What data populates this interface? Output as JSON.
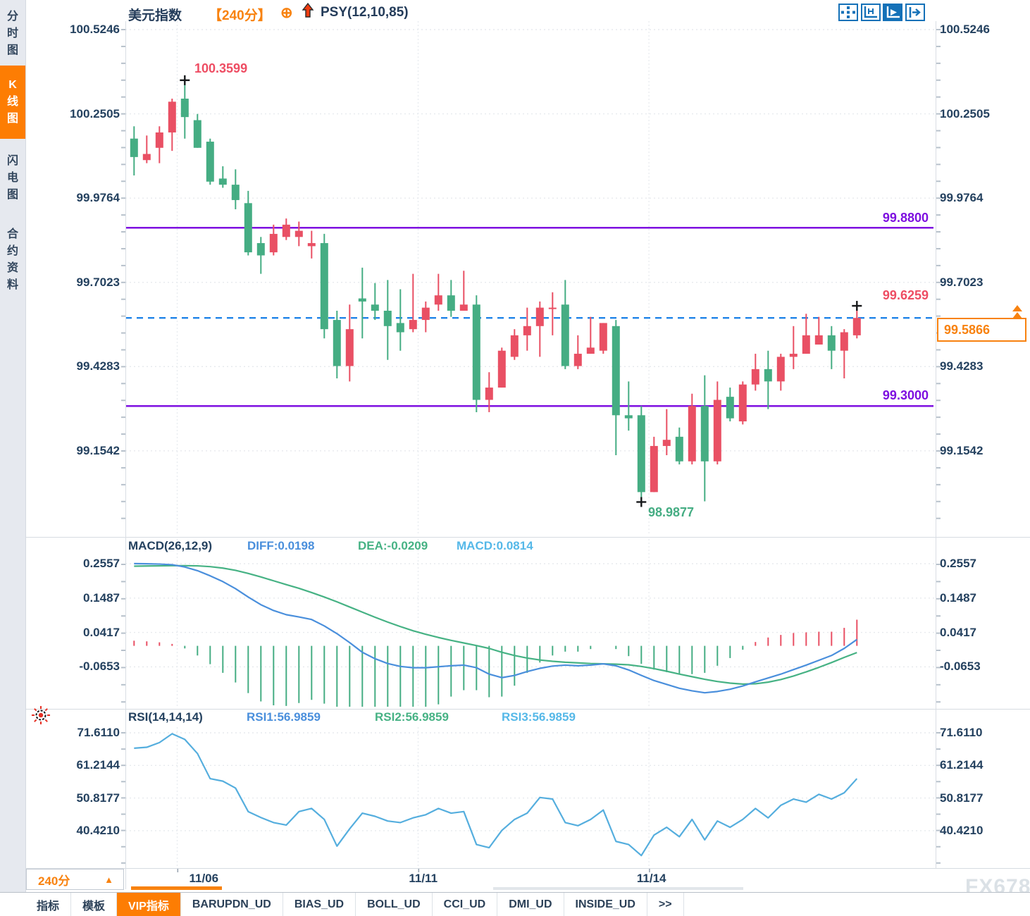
{
  "colors": {
    "up": "#e95064",
    "down": "#45ad83",
    "purple": "#7e10e0",
    "dashed_blue": "#1f83e8",
    "orange": "#f8820f",
    "navy": "#24415f",
    "diff_blue": "#4a8fdc",
    "dea_green": "#46b284",
    "macd_cyan": "#55b8e8",
    "rsi_line": "#55aede",
    "grid": "#e7eaee",
    "icon_blue": "#1471b8",
    "marker_black": "#16181a"
  },
  "sidebar": {
    "tabs": [
      {
        "label": "分时图",
        "selected": false
      },
      {
        "label": "K线图",
        "selected": true
      },
      {
        "label": "闪电图",
        "selected": false
      },
      {
        "label": "合约资料",
        "selected": false
      }
    ]
  },
  "header": {
    "symbol": "美元指数",
    "period": "【240分】",
    "plus_icon": "⊕",
    "arrow_icon": "up-arrow-icon",
    "indicator": "PSY(12,10,85)"
  },
  "toolbar": {
    "icons": [
      {
        "name": "pan-crosshair-icon",
        "selected": false
      },
      {
        "name": "axis-range-icon",
        "selected": false
      },
      {
        "name": "axis-autoscale-icon",
        "selected": true
      },
      {
        "name": "collapse-panel-icon",
        "selected": false
      }
    ]
  },
  "chart_data": {
    "type": "candlestick",
    "symbol": "美元指数",
    "interval": "240分",
    "main": {
      "y_ticks": [
        {
          "label": "100.5246",
          "value": 100.5246
        },
        {
          "label": "100.2505",
          "value": 100.2505
        },
        {
          "label": "99.9764",
          "value": 99.9764
        },
        {
          "label": "99.7023",
          "value": 99.7023
        },
        {
          "label": "99.4283",
          "value": 99.4283
        },
        {
          "label": "99.1542",
          "value": 99.1542
        }
      ],
      "x_ticks": [
        {
          "label": "11/06",
          "index": 5.5,
          "grid_index": 3.4
        },
        {
          "label": "11/11",
          "index": 22.8,
          "grid_index": 22.4
        },
        {
          "label": "11/14",
          "index": 40.8,
          "grid_index": 40.6
        }
      ],
      "candles": [
        {
          "o": 100.17,
          "h": 100.21,
          "l": 100.05,
          "c": 100.11
        },
        {
          "o": 100.1,
          "h": 100.18,
          "l": 100.09,
          "c": 100.12
        },
        {
          "o": 100.14,
          "h": 100.21,
          "l": 100.09,
          "c": 100.19
        },
        {
          "o": 100.19,
          "h": 100.3,
          "l": 100.13,
          "c": 100.29
        },
        {
          "o": 100.3,
          "h": 100.3599,
          "l": 100.17,
          "c": 100.24
        },
        {
          "o": 100.23,
          "h": 100.25,
          "l": 100.14,
          "c": 100.14
        },
        {
          "o": 100.16,
          "h": 100.17,
          "l": 100.02,
          "c": 100.03
        },
        {
          "o": 100.04,
          "h": 100.08,
          "l": 100.01,
          "c": 100.02
        },
        {
          "o": 100.02,
          "h": 100.07,
          "l": 99.94,
          "c": 99.97
        },
        {
          "o": 99.96,
          "h": 100.0,
          "l": 99.79,
          "c": 99.8
        },
        {
          "o": 99.83,
          "h": 99.85,
          "l": 99.73,
          "c": 99.79
        },
        {
          "o": 99.8,
          "h": 99.89,
          "l": 99.79,
          "c": 99.86
        },
        {
          "o": 99.85,
          "h": 99.91,
          "l": 99.84,
          "c": 99.89
        },
        {
          "o": 99.85,
          "h": 99.9,
          "l": 99.82,
          "c": 99.87
        },
        {
          "o": 99.82,
          "h": 99.87,
          "l": 99.78,
          "c": 99.83
        },
        {
          "o": 99.83,
          "h": 99.86,
          "l": 99.52,
          "c": 99.55
        },
        {
          "o": 99.58,
          "h": 99.61,
          "l": 99.39,
          "c": 99.43
        },
        {
          "o": 99.43,
          "h": 99.63,
          "l": 99.38,
          "c": 99.55
        },
        {
          "o": 99.65,
          "h": 99.75,
          "l": 99.52,
          "c": 99.64
        },
        {
          "o": 99.63,
          "h": 99.7,
          "l": 99.58,
          "c": 99.61
        },
        {
          "o": 99.61,
          "h": 99.71,
          "l": 99.45,
          "c": 99.56
        },
        {
          "o": 99.57,
          "h": 99.68,
          "l": 99.48,
          "c": 99.54
        },
        {
          "o": 99.55,
          "h": 99.73,
          "l": 99.54,
          "c": 99.58
        },
        {
          "o": 99.58,
          "h": 99.64,
          "l": 99.54,
          "c": 99.62
        },
        {
          "o": 99.63,
          "h": 99.73,
          "l": 99.61,
          "c": 99.66
        },
        {
          "o": 99.66,
          "h": 99.71,
          "l": 99.59,
          "c": 99.61
        },
        {
          "o": 99.61,
          "h": 99.74,
          "l": 99.61,
          "c": 99.63
        },
        {
          "o": 99.63,
          "h": 99.66,
          "l": 99.28,
          "c": 99.32
        },
        {
          "o": 99.32,
          "h": 99.41,
          "l": 99.28,
          "c": 99.36
        },
        {
          "o": 99.36,
          "h": 99.49,
          "l": 99.36,
          "c": 99.48
        },
        {
          "o": 99.46,
          "h": 99.55,
          "l": 99.45,
          "c": 99.53
        },
        {
          "o": 99.53,
          "h": 99.62,
          "l": 99.48,
          "c": 99.56
        },
        {
          "o": 99.56,
          "h": 99.64,
          "l": 99.46,
          "c": 99.62
        },
        {
          "o": 99.62,
          "h": 99.67,
          "l": 99.53,
          "c": 99.62
        },
        {
          "o": 99.63,
          "h": 99.71,
          "l": 99.42,
          "c": 99.43
        },
        {
          "o": 99.43,
          "h": 99.53,
          "l": 99.42,
          "c": 99.47
        },
        {
          "o": 99.47,
          "h": 99.59,
          "l": 99.47,
          "c": 99.49
        },
        {
          "o": 99.48,
          "h": 99.57,
          "l": 99.47,
          "c": 99.57
        },
        {
          "o": 99.56,
          "h": 99.58,
          "l": 99.14,
          "c": 99.27
        },
        {
          "o": 99.27,
          "h": 99.38,
          "l": 99.22,
          "c": 99.26
        },
        {
          "o": 99.27,
          "h": 99.3,
          "l": 98.9877,
          "c": 99.02
        },
        {
          "o": 99.02,
          "h": 99.2,
          "l": 99.02,
          "c": 99.17
        },
        {
          "o": 99.17,
          "h": 99.29,
          "l": 99.14,
          "c": 99.19
        },
        {
          "o": 99.2,
          "h": 99.23,
          "l": 99.11,
          "c": 99.12
        },
        {
          "o": 99.12,
          "h": 99.34,
          "l": 99.11,
          "c": 99.3
        },
        {
          "o": 99.3,
          "h": 99.4,
          "l": 98.99,
          "c": 99.12
        },
        {
          "o": 99.12,
          "h": 99.38,
          "l": 99.11,
          "c": 99.32
        },
        {
          "o": 99.33,
          "h": 99.36,
          "l": 99.25,
          "c": 99.26
        },
        {
          "o": 99.25,
          "h": 99.38,
          "l": 99.24,
          "c": 99.37
        },
        {
          "o": 99.37,
          "h": 99.47,
          "l": 99.35,
          "c": 99.42
        },
        {
          "o": 99.42,
          "h": 99.48,
          "l": 99.29,
          "c": 99.38
        },
        {
          "o": 99.38,
          "h": 99.47,
          "l": 99.35,
          "c": 99.46
        },
        {
          "o": 99.46,
          "h": 99.56,
          "l": 99.42,
          "c": 99.47
        },
        {
          "o": 99.47,
          "h": 99.6,
          "l": 99.47,
          "c": 99.53
        },
        {
          "o": 99.5,
          "h": 99.59,
          "l": 99.5,
          "c": 99.53
        },
        {
          "o": 99.53,
          "h": 99.56,
          "l": 99.42,
          "c": 99.48
        },
        {
          "o": 99.48,
          "h": 99.55,
          "l": 99.39,
          "c": 99.54
        },
        {
          "o": 99.53,
          "h": 99.6259,
          "l": 99.52,
          "c": 99.5866
        }
      ],
      "markers": [
        {
          "index": 4,
          "at": "high",
          "label": "100.3599"
        },
        {
          "index": 40,
          "at": "low",
          "label": "98.9877"
        },
        {
          "index": 57,
          "at": "high",
          "label": "99.6259"
        }
      ],
      "hlines": [
        {
          "value": 99.88,
          "label": "99.8800"
        },
        {
          "value": 99.3,
          "label": "99.3000"
        }
      ],
      "current_price": {
        "value": 99.5866,
        "label": "99.5866"
      }
    },
    "macd": {
      "title": "MACD(26,12,9)",
      "diff_label": "DIFF:0.0198",
      "dea_label": "DEA:-0.0209",
      "macd_label": "MACD:0.0814",
      "y_ticks": [
        {
          "label": "0.2557",
          "value": 0.2557
        },
        {
          "label": "0.1487",
          "value": 0.1487
        },
        {
          "label": "0.0417",
          "value": 0.0417
        },
        {
          "label": "-0.0653",
          "value": -0.0653
        }
      ],
      "diff": [
        0.256,
        0.2555,
        0.2545,
        0.2525,
        0.2455,
        0.234,
        0.218,
        0.2,
        0.178,
        0.152,
        0.128,
        0.11,
        0.097,
        0.09,
        0.082,
        0.062,
        0.038,
        0.01,
        -0.02,
        -0.04,
        -0.055,
        -0.064,
        -0.068,
        -0.068,
        -0.065,
        -0.062,
        -0.06,
        -0.068,
        -0.088,
        -0.099,
        -0.092,
        -0.08,
        -0.07,
        -0.063,
        -0.06,
        -0.062,
        -0.06,
        -0.056,
        -0.062,
        -0.075,
        -0.092,
        -0.108,
        -0.12,
        -0.132,
        -0.14,
        -0.146,
        -0.142,
        -0.135,
        -0.125,
        -0.112,
        -0.1,
        -0.088,
        -0.074,
        -0.06,
        -0.045,
        -0.03,
        -0.008,
        0.0198
      ],
      "dea": [
        0.248,
        0.2485,
        0.249,
        0.2495,
        0.2495,
        0.249,
        0.2465,
        0.242,
        0.235,
        0.2255,
        0.2145,
        0.2025,
        0.1905,
        0.179,
        0.166,
        0.152,
        0.137,
        0.121,
        0.105,
        0.089,
        0.074,
        0.06,
        0.047,
        0.036,
        0.026,
        0.017,
        0.009,
        0.001,
        -0.008,
        -0.02,
        -0.03,
        -0.038,
        -0.044,
        -0.048,
        -0.051,
        -0.053,
        -0.055,
        -0.056,
        -0.057,
        -0.059,
        -0.064,
        -0.071,
        -0.079,
        -0.088,
        -0.096,
        -0.104,
        -0.111,
        -0.116,
        -0.119,
        -0.118,
        -0.113,
        -0.105,
        -0.094,
        -0.081,
        -0.067,
        -0.052,
        -0.036,
        -0.0209
      ]
    },
    "rsi": {
      "title": "RSI(14,14,14)",
      "rsi1_label": "RSI1:56.9859",
      "rsi2_label": "RSI2:56.9859",
      "rsi3_label": "RSI3:56.9859",
      "y_ticks": [
        {
          "label": "71.6110",
          "value": 71.611
        },
        {
          "label": "61.2144",
          "value": 61.2144
        },
        {
          "label": "50.8177",
          "value": 50.8177
        },
        {
          "label": "40.4210",
          "value": 40.421
        }
      ],
      "values": [
        66.7,
        67,
        68.5,
        71.3,
        69.5,
        65,
        57,
        56.2,
        54,
        46.5,
        44.6,
        43,
        42.2,
        46.5,
        47.5,
        44,
        35.5,
        41,
        46,
        45,
        43.5,
        43,
        44.5,
        45.5,
        47.5,
        46,
        46.5,
        36,
        35,
        40.5,
        44,
        46,
        51,
        50.5,
        43,
        42,
        44,
        47,
        37,
        36,
        32.5,
        39,
        41.5,
        38.5,
        44,
        37.5,
        43.5,
        41.5,
        44,
        47.5,
        44.5,
        48.5,
        50.5,
        49.5,
        52,
        50.5,
        52.5,
        57
      ]
    }
  },
  "footer": {
    "period_selector": {
      "label": "240分",
      "arrow": "▲"
    },
    "tabs": [
      {
        "label": "指标",
        "selected": false
      },
      {
        "label": "模板",
        "selected": false
      },
      {
        "label": "VIP指标",
        "selected": true
      },
      {
        "label": "BARUPDN_UD",
        "selected": false
      },
      {
        "label": "BIAS_UD",
        "selected": false
      },
      {
        "label": "BOLL_UD",
        "selected": false
      },
      {
        "label": "CCI_UD",
        "selected": false
      },
      {
        "label": "DMI_UD",
        "selected": false
      },
      {
        "label": "INSIDE_UD",
        "selected": false
      },
      {
        "label": ">>",
        "selected": false
      }
    ]
  },
  "watermark": "FX678",
  "side_icon": {
    "name": "sun-icon"
  }
}
